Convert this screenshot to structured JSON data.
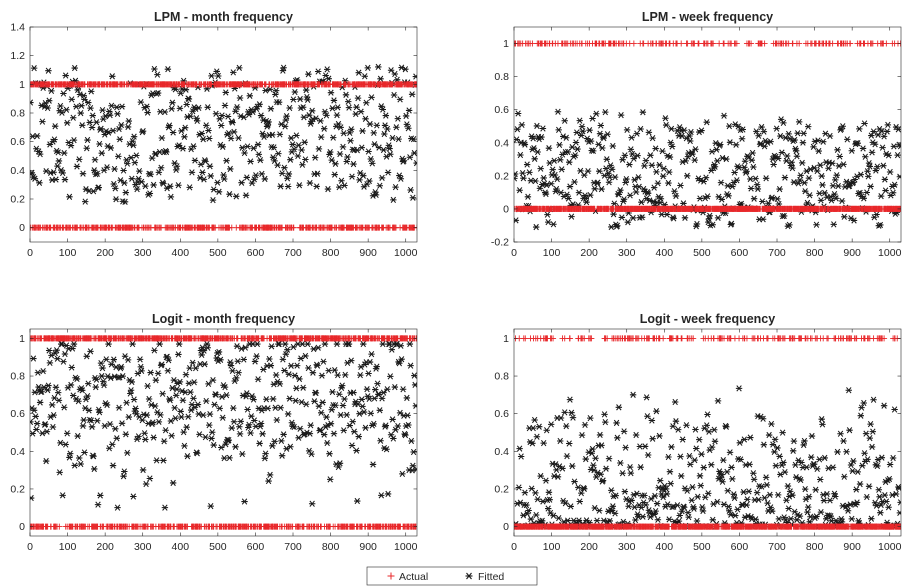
{
  "colors": {
    "actual": "#e8282b",
    "fitted": "#1a1a1a",
    "axis": "#262626"
  },
  "legend": {
    "placement": "bottom-center",
    "entries": [
      {
        "label": "Actual",
        "marker": "plus",
        "color": "#e8282b"
      },
      {
        "label": "Fitted",
        "marker": "asterisk",
        "color": "#1a1a1a"
      }
    ]
  },
  "chart_data": [
    {
      "type": "scatter",
      "title": "LPM - month frequency",
      "xlim": [
        0,
        1030
      ],
      "ylim": [
        -0.1,
        1.4
      ],
      "x_ticks": [
        0,
        100,
        200,
        300,
        400,
        500,
        600,
        700,
        800,
        900,
        1000
      ],
      "y_ticks": [
        0,
        0.2,
        0.4,
        0.6,
        0.8,
        1,
        1.2,
        1.4
      ],
      "y_tick_labels": [
        "0",
        "0.2",
        "0.4",
        "0.6",
        "0.8",
        "1",
        "1.2",
        "1.4"
      ],
      "grid": false,
      "n_obs": 1030,
      "series": [
        {
          "name": "Actual",
          "marker": "plus",
          "values_description": "binary 0/1",
          "share_of_ones": 0.6
        },
        {
          "name": "Fitted",
          "marker": "asterisk",
          "y_range": [
            0.05,
            1.28
          ],
          "center": 0.65
        }
      ]
    },
    {
      "type": "scatter",
      "title": "LPM - week frequency",
      "xlim": [
        0,
        1030
      ],
      "ylim": [
        -0.2,
        1.1
      ],
      "x_ticks": [
        0,
        100,
        200,
        300,
        400,
        500,
        600,
        700,
        800,
        900,
        1000
      ],
      "y_ticks": [
        -0.2,
        0,
        0.2,
        0.4,
        0.6,
        0.8,
        1
      ],
      "y_tick_labels": [
        "-0.2",
        "0",
        "0.2",
        "0.4",
        "0.6",
        "0.8",
        "1"
      ],
      "grid": false,
      "n_obs": 1030,
      "series": [
        {
          "name": "Actual",
          "marker": "plus",
          "values_description": "binary 0/1",
          "share_of_ones": 0.2
        },
        {
          "name": "Fitted",
          "marker": "asterisk",
          "y_range": [
            -0.13,
            0.76
          ],
          "center": 0.2
        }
      ]
    },
    {
      "type": "scatter",
      "title": "Logit - month frequency",
      "xlim": [
        0,
        1030
      ],
      "ylim": [
        -0.05,
        1.05
      ],
      "x_ticks": [
        0,
        100,
        200,
        300,
        400,
        500,
        600,
        700,
        800,
        900,
        1000
      ],
      "y_ticks": [
        0,
        0.2,
        0.4,
        0.6,
        0.8,
        1
      ],
      "y_tick_labels": [
        "0",
        "0.2",
        "0.4",
        "0.6",
        "0.8",
        "1"
      ],
      "grid": false,
      "n_obs": 1030,
      "series": [
        {
          "name": "Actual",
          "marker": "plus",
          "values_description": "binary 0/1",
          "share_of_ones": 0.6
        },
        {
          "name": "Fitted",
          "marker": "asterisk",
          "y_range": [
            0.08,
            0.97
          ],
          "center": 0.68
        }
      ]
    },
    {
      "type": "scatter",
      "title": "Logit - week frequency",
      "xlim": [
        0,
        1030
      ],
      "ylim": [
        -0.05,
        1.05
      ],
      "x_ticks": [
        0,
        100,
        200,
        300,
        400,
        500,
        600,
        700,
        800,
        900,
        1000
      ],
      "y_ticks": [
        0,
        0.2,
        0.4,
        0.6,
        0.8,
        1
      ],
      "y_tick_labels": [
        "0",
        "0.2",
        "0.4",
        "0.6",
        "0.8",
        "1"
      ],
      "grid": false,
      "n_obs": 1030,
      "series": [
        {
          "name": "Actual",
          "marker": "plus",
          "values_description": "binary 0/1",
          "share_of_ones": 0.2
        },
        {
          "name": "Fitted",
          "marker": "asterisk",
          "y_range": [
            0.0,
            0.82
          ],
          "center": 0.2
        }
      ]
    }
  ]
}
